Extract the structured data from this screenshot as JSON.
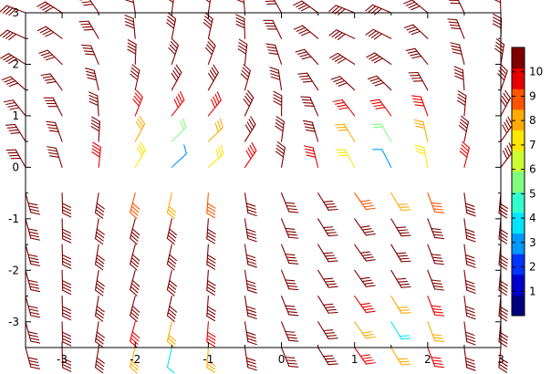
{
  "chart_data": {
    "type": "vector-field",
    "title": "",
    "xlabel": "",
    "ylabel": "",
    "xlim": [
      -3.5,
      3.0
    ],
    "ylim": [
      -3.5,
      3.0
    ],
    "grid": false,
    "x_ticks": [
      -3,
      -2,
      -1,
      0,
      1,
      2,
      3
    ],
    "y_ticks": [
      -3,
      -2,
      -1,
      0,
      1,
      2,
      3
    ],
    "x_tick_labels": [
      "-3",
      "-2",
      "-1",
      "0",
      "1",
      "2",
      "3"
    ],
    "y_tick_labels": [
      "-3",
      "-2",
      "-1",
      "0",
      "1",
      "2",
      "3"
    ],
    "colorbar": {
      "position": "right",
      "range": [
        0,
        11
      ],
      "tick_values": [
        1,
        2,
        3,
        4,
        5,
        6,
        7,
        8,
        9,
        10
      ],
      "tick_labels": [
        "1",
        "2",
        "3",
        "4",
        "5",
        "6",
        "7",
        "8",
        "9",
        "10"
      ],
      "colors": [
        "#000080",
        "#0000cd",
        "#0033ff",
        "#0099ff",
        "#00e5ff",
        "#33ffcc",
        "#80ff80",
        "#ccff33",
        "#ffe600",
        "#ffaa00",
        "#ff5500",
        "#e60000",
        "#800000"
      ]
    },
    "glyph": "wind-barb",
    "grid_spacing": 0.5,
    "field_summary": "Barb glyphs on a 0.5-spaced grid; highest magnitudes (about 10) at the left and right edges and in the central band, lowest magnitudes (about 2-5) near (-1.5, 0), (1.5, 0), (-1.5, -3.5) and (1.5, -3)."
  }
}
